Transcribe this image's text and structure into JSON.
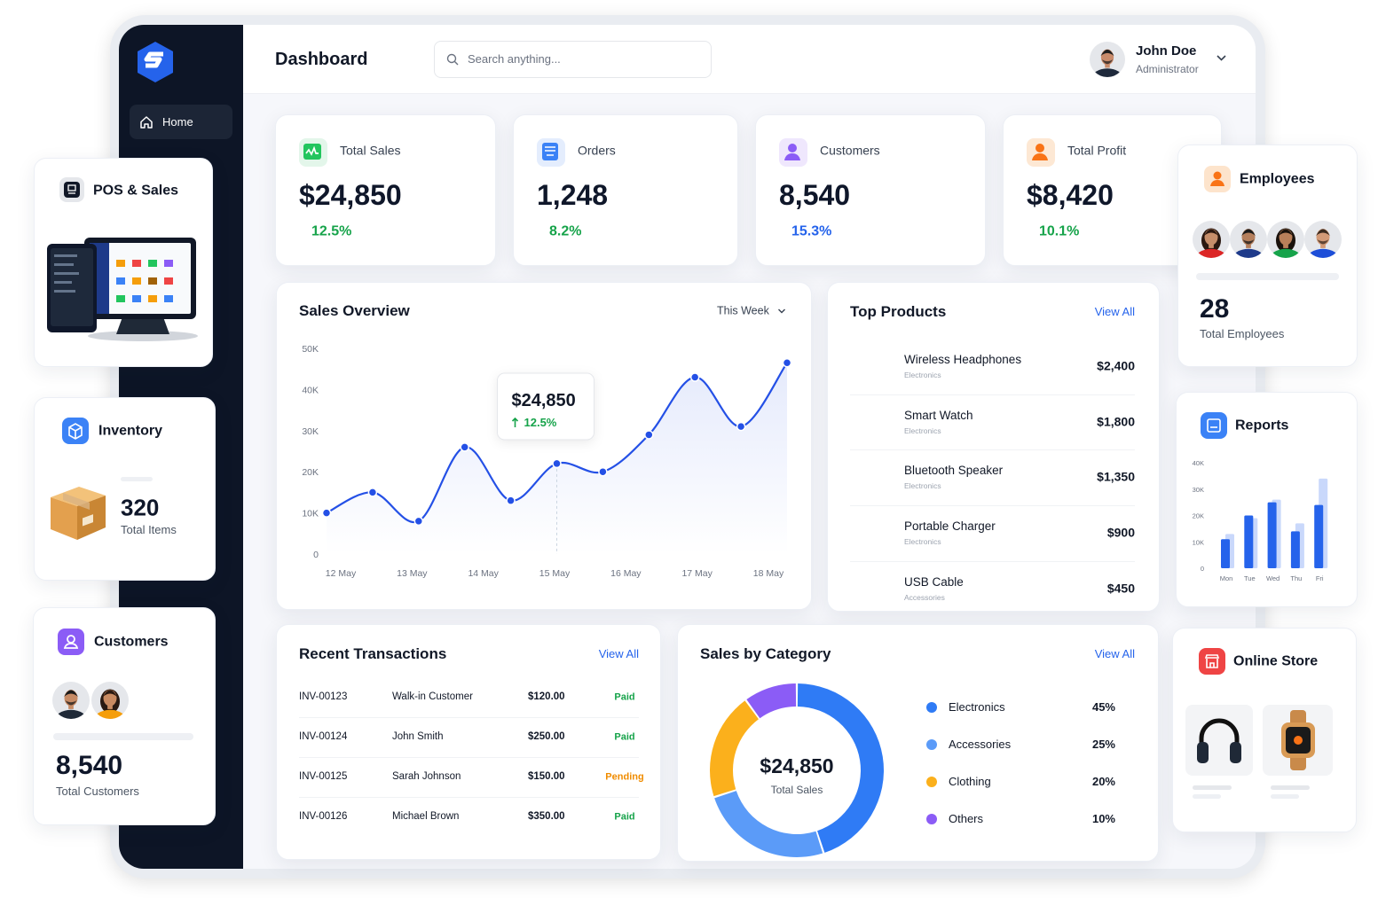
{
  "sidebar": {
    "nav": [
      "Home"
    ]
  },
  "header": {
    "title": "Dashboard",
    "search_placeholder": "Search anything...",
    "user": {
      "name": "John Doe",
      "role": "Administrator"
    }
  },
  "stats": [
    {
      "label": "Total Sales",
      "value": "$24,850",
      "change": "12.5%",
      "color": "#16a34a"
    },
    {
      "label": "Orders",
      "value": "1,248",
      "change": "8.2%",
      "color": "#16a34a"
    },
    {
      "label": "Customers",
      "value": "8,540",
      "change": "15.3%",
      "color": "#2563eb"
    },
    {
      "label": "Total Profit",
      "value": "$8,420",
      "change": "10.1%",
      "color": "#16a34a"
    }
  ],
  "sales_overview": {
    "type": "line",
    "title": "Sales Overview",
    "period": "This Week",
    "x_labels": [
      "12 May",
      "13 May",
      "14 May",
      "15 May",
      "16 May",
      "17 May",
      "18 May"
    ],
    "values": [
      10000,
      15000,
      8000,
      26000,
      13000,
      22000,
      20000,
      29000,
      43000,
      31000,
      46500
    ],
    "color": "#2450e6",
    "ylim": [
      0,
      50000
    ],
    "yticks": [
      0,
      {
        "value": 10000,
        "label": "10K"
      },
      {
        "value": 20000,
        "label": "20K"
      },
      {
        "value": 30000,
        "label": "30K"
      },
      {
        "value": 40000,
        "label": "40K"
      },
      {
        "value": 50000,
        "label": "50K"
      }
    ],
    "grid": false,
    "tooltip": {
      "value": "$24,850",
      "change": "12.5%"
    }
  },
  "top_products": {
    "title": "Top Products",
    "link": "View All",
    "items": [
      {
        "name": "Wireless Headphones",
        "category": "Electronics",
        "price": "$2,400"
      },
      {
        "name": "Smart Watch",
        "category": "Electronics",
        "price": "$1,800"
      },
      {
        "name": "Bluetooth Speaker",
        "category": "Electronics",
        "price": "$1,350"
      },
      {
        "name": "Portable Charger",
        "category": "Electronics",
        "price": "$900"
      },
      {
        "name": "USB Cable",
        "category": "Accessories",
        "price": "$450"
      }
    ]
  },
  "transactions": {
    "title": "Recent Transactions",
    "link": "View All",
    "rows": [
      {
        "id": "INV-00123",
        "customer": "Walk-in Customer",
        "amount": "$120.00",
        "status": "Paid",
        "status_color": "#16a34a"
      },
      {
        "id": "INV-00124",
        "customer": "John Smith",
        "amount": "$250.00",
        "status": "Paid",
        "status_color": "#16a34a"
      },
      {
        "id": "INV-00125",
        "customer": "Sarah Johnson",
        "amount": "$150.00",
        "status": "Pending",
        "status_color": "#f08c00"
      },
      {
        "id": "INV-00126",
        "customer": "Michael Brown",
        "amount": "$350.00",
        "status": "Paid",
        "status_color": "#16a34a"
      }
    ]
  },
  "sales_by_category": {
    "type": "pie",
    "title": "Sales by Category",
    "link": "View All",
    "center_value": "$24,850",
    "center_label": "Total Sales",
    "categories": [
      "Electronics",
      "Accessories",
      "Clothing",
      "Others"
    ],
    "values": [
      45,
      25,
      20,
      10
    ],
    "value_labels": [
      "45%",
      "25%",
      "20%",
      "10%"
    ],
    "colors": [
      "#2f7bf5",
      "#5b9bf8",
      "#fbb01c",
      "#8b5cf6"
    ]
  },
  "pos_card": {
    "title": "POS & Sales"
  },
  "inventory_card": {
    "title": "Inventory",
    "value": "320",
    "label": "Total Items"
  },
  "customers_card": {
    "title": "Customers",
    "value": "8,540",
    "label": "Total Customers"
  },
  "employees_card": {
    "title": "Employees",
    "value": "28",
    "label": "Total Employees"
  },
  "reports_card": {
    "type": "bar",
    "title": "Reports",
    "categories": [
      "Mon",
      "Tue",
      "Wed",
      "Thu",
      "Fri"
    ],
    "series": [
      {
        "color": "#c9d8fb",
        "values": [
          13000,
          19000,
          26000,
          17000,
          34000
        ]
      },
      {
        "color": "#2563eb",
        "values": [
          11000,
          20000,
          25000,
          14000,
          24000
        ]
      }
    ],
    "ylim": [
      0,
      40000
    ],
    "yticks": [
      0,
      {
        "value": 10000,
        "label": "10K"
      },
      {
        "value": 20000,
        "label": "20K"
      },
      {
        "value": 30000,
        "label": "30K"
      },
      {
        "value": 40000,
        "label": "40K"
      }
    ]
  },
  "online_store_card": {
    "title": "Online Store"
  }
}
